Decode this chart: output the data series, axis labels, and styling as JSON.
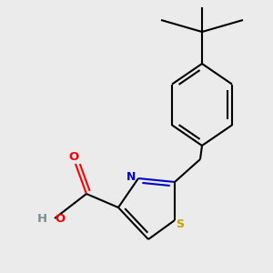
{
  "background_color": "#ebebeb",
  "line_color": "#000000",
  "line_width": 1.5,
  "colors": {
    "S": "#c8a000",
    "N": "#0000cd",
    "O": "#ff0000",
    "H": "#7a9090",
    "C": "#000000"
  },
  "figsize": [
    3.0,
    3.0
  ],
  "dpi": 100
}
